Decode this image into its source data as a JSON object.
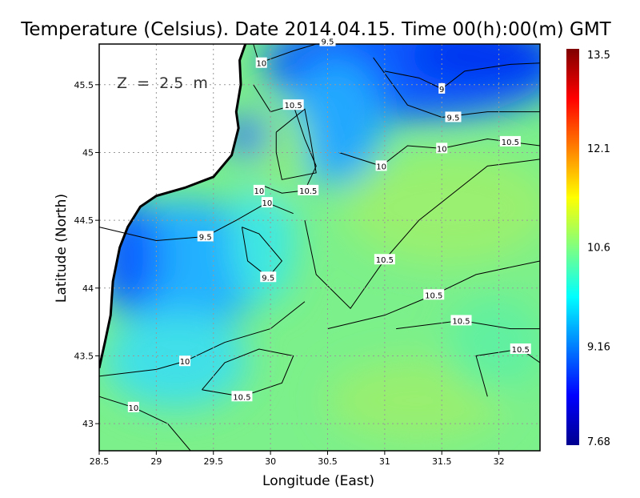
{
  "title": "Temperature (Celsius). Date 2014.04.15. Time 00(h):00(m) GMT",
  "depth_label": "Z  =  2.5  m",
  "chart_data": {
    "type": "heatmap",
    "xlabel": "Longitude (East)",
    "ylabel": "Latitude (North)",
    "xlim": [
      28.5,
      32.36
    ],
    "ylim": [
      42.8,
      45.8
    ],
    "xticks": [
      "28.5",
      "29",
      "29.5",
      "30",
      "30.5",
      "31",
      "31.5",
      "32"
    ],
    "yticks": [
      "43",
      "43.5",
      "44",
      "44.5",
      "45",
      "45.5"
    ],
    "grid": true,
    "colorbar": {
      "min": 7.68,
      "max": 13.5,
      "ticks": [
        "13.5",
        "12.1",
        "10.6",
        "9.16",
        "7.68"
      ],
      "colormap": "jet"
    },
    "contour_labels": [
      {
        "text": "9.5",
        "lon": 30.5,
        "lat": 45.82
      },
      {
        "text": "10",
        "lon": 29.92,
        "lat": 45.66
      },
      {
        "text": "9",
        "lon": 31.5,
        "lat": 45.47
      },
      {
        "text": "10.5",
        "lon": 30.2,
        "lat": 45.35
      },
      {
        "text": "9.5",
        "lon": 31.6,
        "lat": 45.26
      },
      {
        "text": "10",
        "lon": 31.5,
        "lat": 45.03
      },
      {
        "text": "10.5",
        "lon": 32.1,
        "lat": 45.08
      },
      {
        "text": "10",
        "lon": 30.97,
        "lat": 44.9
      },
      {
        "text": "10.5",
        "lon": 30.33,
        "lat": 44.72
      },
      {
        "text": "10",
        "lon": 29.9,
        "lat": 44.72
      },
      {
        "text": "10",
        "lon": 29.97,
        "lat": 44.63
      },
      {
        "text": "9.5",
        "lon": 29.43,
        "lat": 44.38
      },
      {
        "text": "9.5",
        "lon": 29.98,
        "lat": 44.08
      },
      {
        "text": "10.5",
        "lon": 31.0,
        "lat": 44.21
      },
      {
        "text": "10.5",
        "lon": 31.43,
        "lat": 43.95
      },
      {
        "text": "10.5",
        "lon": 31.67,
        "lat": 43.76
      },
      {
        "text": "10.5",
        "lon": 32.19,
        "lat": 43.55
      },
      {
        "text": "10",
        "lon": 29.25,
        "lat": 43.46
      },
      {
        "text": "10.5",
        "lon": 29.75,
        "lat": 43.2
      },
      {
        "text": "10",
        "lon": 28.8,
        "lat": 43.12
      }
    ]
  }
}
